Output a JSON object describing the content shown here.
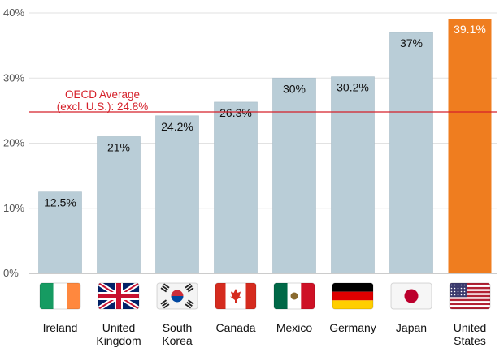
{
  "chart_data": {
    "type": "bar",
    "title": "",
    "xlabel": "",
    "ylabel": "",
    "categories": [
      [
        "Ireland"
      ],
      [
        "United",
        "Kingdom"
      ],
      [
        "South",
        "Korea"
      ],
      [
        "Canada"
      ],
      [
        "Mexico"
      ],
      [
        "Germany"
      ],
      [
        "Japan"
      ],
      [
        "United",
        "States"
      ]
    ],
    "values": [
      12.5,
      21,
      24.2,
      26.3,
      30,
      30.2,
      37,
      39.1
    ],
    "value_labels": [
      "12.5%",
      "21%",
      "24.2%",
      "26.3%",
      "30%",
      "30.2%",
      "37%",
      "39.1%"
    ],
    "ylim": [
      0,
      40
    ],
    "yticks": [
      0,
      10,
      20,
      30,
      40
    ],
    "ytick_labels": [
      "0%",
      "10%",
      "20%",
      "30%",
      "40%"
    ],
    "grid": true,
    "highlight_index": 7,
    "reference_line": {
      "value": 24.8,
      "label_lines": [
        "OECD Average",
        "(excl. U.S.): 24.8%"
      ]
    },
    "flags": [
      "ireland",
      "united-kingdom",
      "south-korea",
      "canada",
      "mexico",
      "germany",
      "japan",
      "united-states"
    ],
    "colors": {
      "bar": "#b9cdd7",
      "bar_edge": "#a9bdc8",
      "highlight": "#ef7d1f",
      "reference": "#d5202a",
      "grid": "#e2e2e2",
      "axis": "#999999"
    }
  }
}
